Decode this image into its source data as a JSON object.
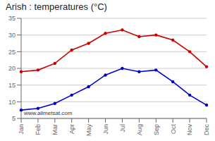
{
  "chart_data": {
    "type": "line",
    "title": "Arish : temperatures (°C)",
    "categories": [
      "Jan",
      "Feb",
      "Mar",
      "Apr",
      "May",
      "Jun",
      "Jul",
      "Aug",
      "Sep",
      "Oct",
      "Nov",
      "Dec"
    ],
    "series": [
      {
        "color": "#cc0000",
        "marker": "circle",
        "values": [
          19,
          19.5,
          21.5,
          25.5,
          27.5,
          30.5,
          31.5,
          29.5,
          30,
          28.5,
          25,
          20.5
        ]
      },
      {
        "color": "#0000cc",
        "marker": "circle",
        "values": [
          7.5,
          8,
          9.5,
          12,
          14.5,
          18,
          20,
          19,
          19.5,
          16,
          12,
          9
        ]
      }
    ],
    "ylim": [
      5,
      35
    ],
    "yticks": [
      5,
      10,
      15,
      20,
      25,
      30,
      35
    ],
    "grid": true,
    "annotations": [
      "www.allmetsat.com"
    ]
  }
}
